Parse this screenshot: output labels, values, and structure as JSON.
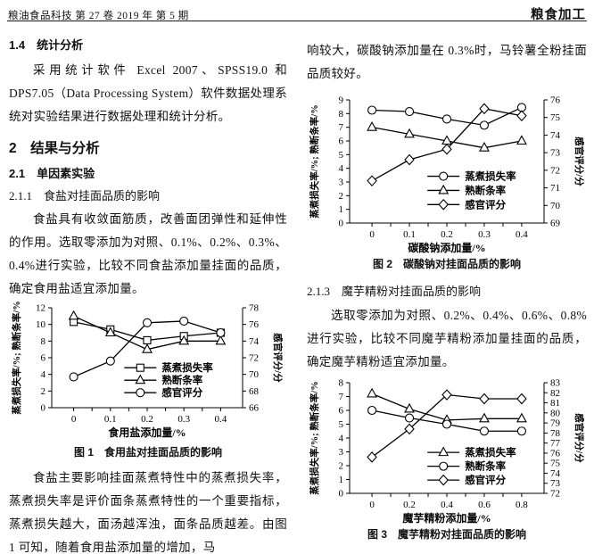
{
  "page": {
    "header": {
      "left": "粮油食品科技 第 27 卷  2019 年  第 5 期",
      "right": "粮食加工"
    },
    "left_column": {
      "sec_14_title": "1.4　统计分析",
      "para_stats": "采用统计软件 Excel 2007、SPSS19.0 和 DPS7.05（Data Processing System）软件数据处理系统对实验结果进行数据处理和统计分析。",
      "sec_2_title": "2　结果与分析",
      "sec_21_title": "2.1　单因素实验",
      "sec_211_title": "2.1.1　食盐对挂面品质的影响",
      "para_salt": "食盐具有收敛面筋质，改善面团弹性和延伸性的作用。选取零添加为对照、0.1%、0.2%、0.3%、0.4%进行实验，比较不同食盐添加量挂面的品质，确定食用盐适宜添加量。",
      "fig1_caption": "图 1　食用盐对挂面品质的影响",
      "para_salt2": "食盐主要影响挂面蒸煮特性中的蒸煮损失率，蒸煮损失率是评价面条蒸煮特性的一个重要指标，蒸煮损失越大，面汤越浑浊，面条品质越差。由图 1 可知，随着食用盐添加量的增加，马"
    },
    "right_column": {
      "para_na2co3": "响较大，碳酸钠添加量在 0.3%时，马铃薯全粉挂面品质较好。",
      "fig2_caption": "图 2　碳酸钠对挂面品质的影响",
      "sec_213_title": "2.1.3　魔芋精粉对挂面品质的影响",
      "para_konjac": "选取零添加为对照、0.2%、0.4%、0.6%、0.8%进行实验，比较不同魔芋精粉添加量挂面的品质，确定魔芋精粉适宜添加量。",
      "fig3_caption": "图 3　魔芋精粉对挂面品质的影响"
    }
  },
  "chart_data": [
    {
      "id": "fig1",
      "type": "line",
      "title": "图 1 食用盐对挂面品质的影响",
      "xlabel": "食用盐添加量/%",
      "ylabel_left": "蒸煮损失率/%; 熟断条率/%",
      "ylabel_right": "感官评分/分",
      "x_categories": [
        "0",
        "0.1",
        "0.2",
        "0.3",
        "0.4"
      ],
      "y_left": {
        "min": 0,
        "max": 12,
        "step": 2
      },
      "y_right": {
        "min": 66,
        "max": 78,
        "step": 2
      },
      "grid": false,
      "legend_position": "inside-center-right",
      "series": [
        {
          "name": "蒸煮损失率",
          "marker": "square",
          "axis": "left",
          "values": [
            10.3,
            9.4,
            8.1,
            8.6,
            9.0
          ]
        },
        {
          "name": "熟断条率",
          "marker": "triangle",
          "axis": "left",
          "values": [
            11.0,
            9.0,
            7.0,
            8.0,
            8.0
          ]
        },
        {
          "name": "感官评分",
          "marker": "circle",
          "axis": "right",
          "values": [
            69.7,
            71.6,
            76.2,
            76.4,
            75.0
          ]
        }
      ]
    },
    {
      "id": "fig2",
      "type": "line",
      "title": "图 2 碳酸钠对挂面品质的影响",
      "xlabel": "碳酸钠添加量/%",
      "ylabel_left": "蒸煮损失率/%; 熟断条率/%",
      "ylabel_right": "感官评分/分",
      "x_categories": [
        "0",
        "0.1",
        "0.2",
        "0.3",
        "0.4"
      ],
      "y_left": {
        "min": 0,
        "max": 9,
        "step": 1
      },
      "y_right": {
        "min": 69,
        "max": 76,
        "step": 1
      },
      "grid": false,
      "legend_position": "inside-center-right",
      "series": [
        {
          "name": "蒸煮损失率",
          "marker": "circle",
          "axis": "left",
          "values": [
            8.25,
            8.15,
            7.6,
            7.15,
            8.45
          ]
        },
        {
          "name": "熟断条率",
          "marker": "triangle",
          "axis": "left",
          "values": [
            7.0,
            6.5,
            6.0,
            5.5,
            6.0
          ]
        },
        {
          "name": "感官评分",
          "marker": "diamond",
          "axis": "right",
          "values": [
            71.4,
            72.6,
            73.2,
            75.5,
            75.1
          ]
        }
      ]
    },
    {
      "id": "fig3",
      "type": "line",
      "title": "图 3 魔芋精粉对挂面品质的影响",
      "xlabel": "魔芋精粉添加量/%",
      "ylabel_left": "蒸煮损失率/%; 熟断条率/%",
      "ylabel_right": "感官评分/分",
      "x_categories": [
        "0",
        "0.2",
        "0.4",
        "0.6",
        "0.8"
      ],
      "y_left": {
        "min": 0,
        "max": 8,
        "step": 1
      },
      "y_right": {
        "min": 72,
        "max": 83,
        "step": 1
      },
      "grid": false,
      "legend_position": "inside-center-right",
      "series": [
        {
          "name": "蒸煮损失率",
          "marker": "triangle",
          "axis": "left",
          "values": [
            7.2,
            6.1,
            5.3,
            5.4,
            5.4
          ]
        },
        {
          "name": "熟断条率",
          "marker": "circle",
          "axis": "left",
          "values": [
            6.0,
            5.45,
            5.0,
            4.5,
            4.5
          ]
        },
        {
          "name": "感官评分",
          "marker": "diamond",
          "axis": "right",
          "values": [
            75.6,
            78.4,
            81.8,
            81.4,
            81.4
          ]
        }
      ]
    }
  ]
}
